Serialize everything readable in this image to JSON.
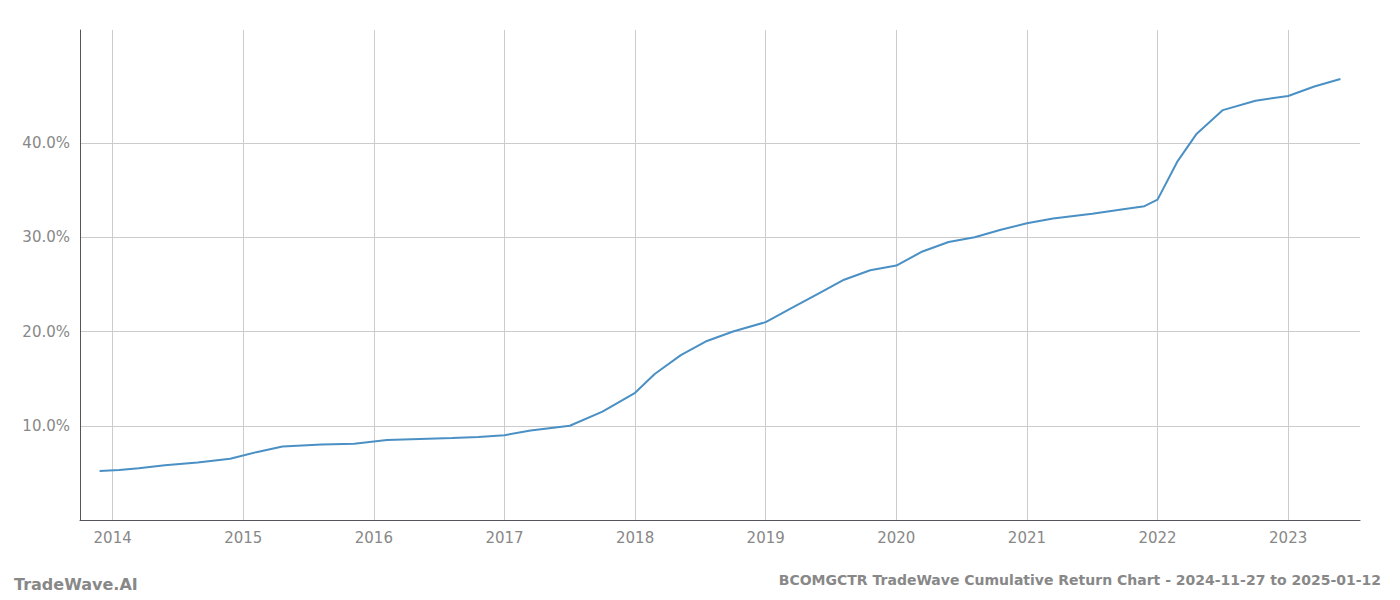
{
  "chart_data": {
    "type": "line",
    "title": "BCOMGCTR TradeWave Cumulative Return Chart - 2024-11-27 to 2025-01-12",
    "annotations": [
      "TradeWave.AI"
    ],
    "color": "#4a90c4",
    "x": [
      2013.9,
      2014.05,
      2014.2,
      2014.4,
      2014.65,
      2014.9,
      2015.1,
      2015.3,
      2015.6,
      2015.85,
      2016.1,
      2016.35,
      2016.6,
      2016.8,
      2017.0,
      2017.2,
      2017.5,
      2017.75,
      2018.0,
      2018.15,
      2018.35,
      2018.55,
      2018.75,
      2019.0,
      2019.2,
      2019.4,
      2019.6,
      2019.8,
      2020.0,
      2020.2,
      2020.4,
      2020.6,
      2020.8,
      2021.0,
      2021.2,
      2021.5,
      2021.75,
      2021.9,
      2022.0,
      2022.15,
      2022.3,
      2022.5,
      2022.75,
      2023.0,
      2023.2,
      2023.4
    ],
    "values": [
      5.2,
      5.3,
      5.5,
      5.8,
      6.1,
      6.5,
      7.2,
      7.8,
      8.0,
      8.1,
      8.5,
      8.6,
      8.7,
      8.8,
      9.0,
      9.5,
      10.0,
      11.5,
      13.5,
      15.5,
      17.5,
      19.0,
      20.0,
      21.0,
      22.5,
      24.0,
      25.5,
      26.5,
      27.0,
      28.5,
      29.5,
      30.0,
      30.8,
      31.5,
      32.0,
      32.5,
      33.0,
      33.3,
      34.0,
      38.0,
      41.0,
      43.5,
      44.5,
      45.0,
      46.0,
      46.8
    ],
    "xlim": [
      2013.75,
      2023.55
    ],
    "xticks": [
      2014,
      2015,
      2016,
      2017,
      2018,
      2019,
      2020,
      2021,
      2022,
      2023
    ],
    "ylim": [
      0,
      52
    ],
    "yticks": [
      {
        "value": 10.0,
        "label": "10.0%"
      },
      {
        "value": 20.0,
        "label": "20.0%"
      },
      {
        "value": 30.0,
        "label": "30.0%"
      },
      {
        "value": 40.0,
        "label": "40.0%"
      }
    ],
    "grid": true
  }
}
